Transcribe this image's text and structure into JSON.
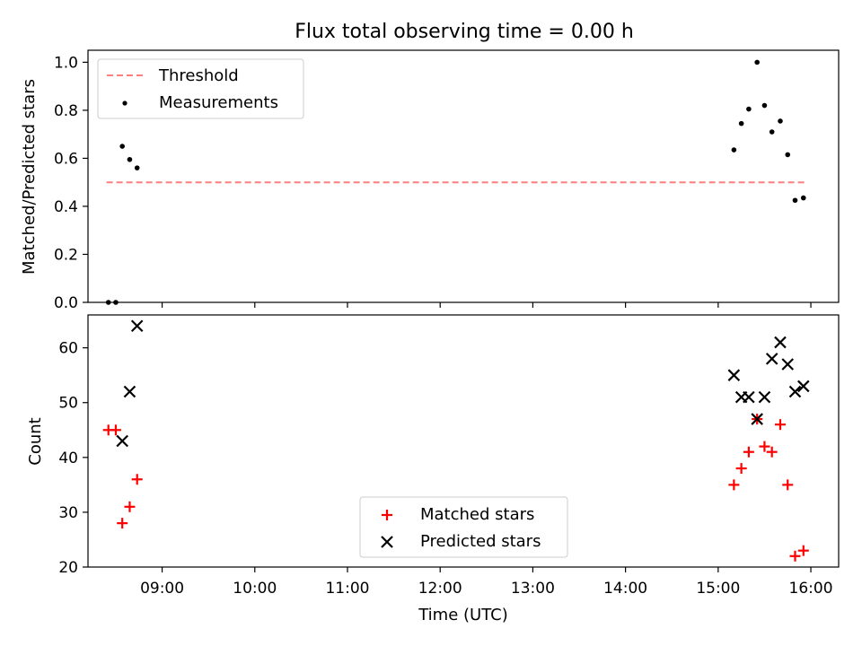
{
  "chart_data": [
    {
      "type": "scatter",
      "title": "Flux total observing time = 0.00 h",
      "xlabel": "",
      "ylabel": "Matched/Predicted stars",
      "xlim": [
        8.2,
        16.3
      ],
      "ylim": [
        0.0,
        1.05
      ],
      "yticks": [
        0.0,
        0.2,
        0.4,
        0.6,
        0.8,
        1.0
      ],
      "ytick_labels": [
        "0.0",
        "0.2",
        "0.4",
        "0.6",
        "0.8",
        "1.0"
      ],
      "grid": false,
      "legend": {
        "position": "top-left",
        "entries": [
          {
            "label": "Threshold",
            "marker": "dashed-line",
            "color": "#ff7f7f"
          },
          {
            "label": "Measurements",
            "marker": "dot",
            "color": "#000000"
          }
        ]
      },
      "threshold": {
        "name": "Threshold",
        "y": 0.5,
        "x_start": 8.4,
        "x_end": 15.93
      },
      "series": [
        {
          "name": "Measurements",
          "color": "#000000",
          "x": [
            8.42,
            8.5,
            8.57,
            8.65,
            8.73,
            15.17,
            15.25,
            15.33,
            15.42,
            15.5,
            15.58,
            15.67,
            15.75,
            15.83,
            15.92
          ],
          "y": [
            0.0,
            0.0,
            0.65,
            0.595,
            0.56,
            0.635,
            0.745,
            0.805,
            1.0,
            0.82,
            0.71,
            0.755,
            0.615,
            0.425,
            0.435
          ]
        }
      ]
    },
    {
      "type": "scatter",
      "title": "",
      "xlabel": "Time (UTC)",
      "ylabel": "Count",
      "xlim": [
        8.2,
        16.3
      ],
      "ylim": [
        20,
        66
      ],
      "xticks": [
        9,
        10,
        11,
        12,
        13,
        14,
        15,
        16
      ],
      "xtick_labels": [
        "09:00",
        "10:00",
        "11:00",
        "12:00",
        "13:00",
        "14:00",
        "15:00",
        "16:00"
      ],
      "yticks": [
        20,
        30,
        40,
        50,
        60
      ],
      "ytick_labels": [
        "20",
        "30",
        "40",
        "50",
        "60"
      ],
      "grid": false,
      "legend": {
        "position": "bottom-center",
        "entries": [
          {
            "label": "Matched stars",
            "marker": "plus",
            "color": "#ff0000"
          },
          {
            "label": "Predicted stars",
            "marker": "x",
            "color": "#000000"
          }
        ]
      },
      "series": [
        {
          "name": "Matched stars",
          "marker": "plus",
          "color": "#ff0000",
          "x": [
            8.42,
            8.5,
            8.57,
            8.65,
            8.73,
            15.17,
            15.25,
            15.33,
            15.42,
            15.5,
            15.58,
            15.67,
            15.75,
            15.83,
            15.92
          ],
          "y": [
            45,
            45,
            28,
            31,
            36,
            35,
            38,
            41,
            47,
            42,
            41,
            46,
            35,
            22,
            23
          ]
        },
        {
          "name": "Predicted stars",
          "marker": "x",
          "color": "#000000",
          "x": [
            8.57,
            8.65,
            8.73,
            15.17,
            15.25,
            15.33,
            15.42,
            15.5,
            15.58,
            15.67,
            15.75,
            15.83,
            15.92
          ],
          "y": [
            43,
            52,
            64,
            55,
            51,
            51,
            47,
            51,
            58,
            61,
            57,
            52,
            53
          ]
        }
      ]
    }
  ]
}
